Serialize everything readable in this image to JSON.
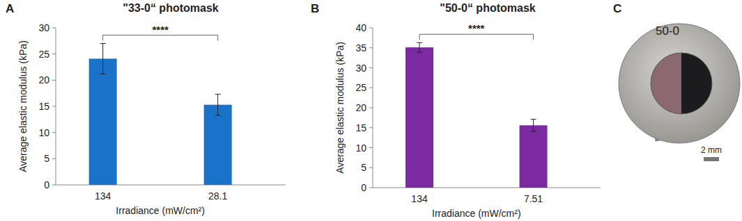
{
  "chart_data": [
    {
      "type": "bar",
      "panel": "A",
      "title": "\"33-0“ photomask",
      "x_label": "Irradiance (mW/cm²)",
      "y_label": "Average elastic modulus (kPa)",
      "categories": [
        "134",
        "28.1"
      ],
      "values": [
        24.1,
        15.3
      ],
      "errors": [
        2.9,
        2.0
      ],
      "color": "#1a73c9",
      "ylim": [
        0,
        30
      ],
      "yticks": [
        0,
        5,
        10,
        15,
        20,
        25,
        30
      ],
      "annotations": [
        "****"
      ]
    },
    {
      "type": "bar",
      "panel": "B",
      "title": "\"50-0“ photomask",
      "x_label": "Irradiance (mW/cm²)",
      "y_label": "Average elastic modulus (kPa)",
      "categories": [
        "134",
        "7.51"
      ],
      "values": [
        35.1,
        15.6
      ],
      "errors": [
        1.2,
        1.5
      ],
      "color": "#7b2aa0",
      "ylim": [
        0,
        40
      ],
      "yticks": [
        0,
        5,
        10,
        15,
        20,
        25,
        30,
        35,
        40
      ],
      "annotations": [
        "****"
      ]
    }
  ],
  "photo": {
    "panel": "C",
    "mask_label": "50-0",
    "scale_bar": "2 mm"
  }
}
